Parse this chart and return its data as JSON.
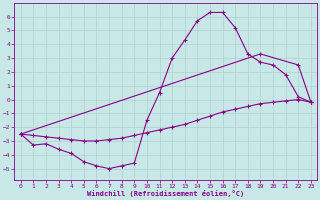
{
  "xlabel": "Windchill (Refroidissement éolien,°C)",
  "bg_color": "#c8e8e8",
  "grid_color": "#b0d0d0",
  "line_color": "#880088",
  "xlim": [
    -0.5,
    23.5
  ],
  "ylim": [
    -5.8,
    7.0
  ],
  "xticks": [
    0,
    1,
    2,
    3,
    4,
    5,
    6,
    7,
    8,
    9,
    10,
    11,
    12,
    13,
    14,
    15,
    16,
    17,
    18,
    19,
    20,
    21,
    22,
    23
  ],
  "yticks": [
    -5,
    -4,
    -3,
    -2,
    -1,
    0,
    1,
    2,
    3,
    4,
    5,
    6
  ],
  "line1_x": [
    0,
    1,
    2,
    3,
    4,
    5,
    6,
    7,
    8,
    9,
    10,
    11,
    12,
    13,
    14,
    15,
    16,
    17,
    18,
    19,
    20,
    21,
    22,
    23
  ],
  "line1_y": [
    -2.5,
    -3.3,
    -3.2,
    -3.6,
    -3.9,
    -4.5,
    -4.8,
    -5.0,
    -4.8,
    -4.6,
    -1.5,
    0.5,
    3.0,
    4.3,
    5.7,
    6.3,
    6.3,
    5.2,
    3.3,
    2.7,
    2.5,
    1.8,
    0.2,
    -0.2
  ],
  "line2_x": [
    0,
    1,
    2,
    3,
    4,
    5,
    6,
    7,
    8,
    9,
    10,
    11,
    12,
    13,
    14,
    15,
    16,
    17,
    18,
    19,
    20,
    21,
    22,
    23
  ],
  "line2_y": [
    -2.5,
    -2.6,
    -2.7,
    -2.8,
    -2.9,
    -3.0,
    -3.0,
    -2.9,
    -2.8,
    -2.6,
    -2.4,
    -2.2,
    -2.0,
    -1.8,
    -1.5,
    -1.2,
    -0.9,
    -0.7,
    -0.5,
    -0.3,
    -0.2,
    -0.1,
    0.0,
    -0.2
  ],
  "line3_x": [
    0,
    19,
    22,
    23
  ],
  "line3_y": [
    -2.5,
    3.3,
    2.5,
    -0.2
  ]
}
